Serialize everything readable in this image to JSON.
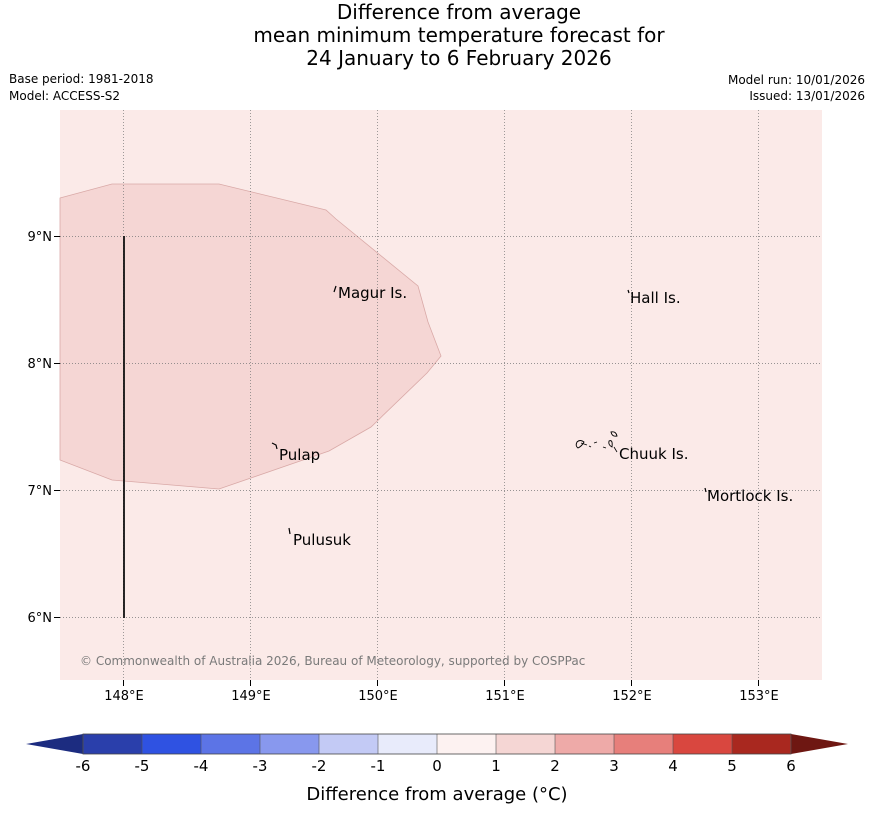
{
  "title": {
    "line1": "Difference from average",
    "line2": "mean minimum temperature forecast for",
    "line3": "24 January to 6 February 2026"
  },
  "meta": {
    "base_period": "Base period: 1981-2018",
    "model": "Model: ACCESS-S2",
    "model_run": "Model run: 10/01/2026",
    "issued": "Issued: 13/01/2026"
  },
  "map": {
    "background_color": "#fbeae8",
    "anomaly_region_color": "#f5d6d4",
    "lon_range": [
      147.5,
      153.5
    ],
    "lat_range": [
      5.5,
      10.0
    ],
    "x_ticks": [
      "148°E",
      "149°E",
      "150°E",
      "151°E",
      "152°E",
      "153°E"
    ],
    "y_ticks": [
      "9°N",
      "8°N",
      "7°N",
      "6°N"
    ],
    "place_labels": [
      "Magur Is.",
      "Hall Is.",
      "Pulap",
      "Chuuk Is.",
      "Mortlock Is.",
      "Pulusuk"
    ],
    "copyright": "© Commonwealth of Australia 2026, Bureau of Meteorology, supported by COSPPac"
  },
  "colorbar": {
    "tick_labels": [
      "-6",
      "-5",
      "-4",
      "-3",
      "-2",
      "-1",
      "0",
      "1",
      "2",
      "3",
      "4",
      "5",
      "6"
    ],
    "colors": [
      "#2a3fab",
      "#2f52e2",
      "#5c74e6",
      "#8898ee",
      "#c3caf5",
      "#e8ebfb",
      "#fdf2f1",
      "#f5d6d4",
      "#eeaaa8",
      "#e77f7b",
      "#d9473f",
      "#a9281f"
    ],
    "under_color": "#1c2c80",
    "over_color": "#6e1712",
    "label": "Difference from average (°C)"
  }
}
